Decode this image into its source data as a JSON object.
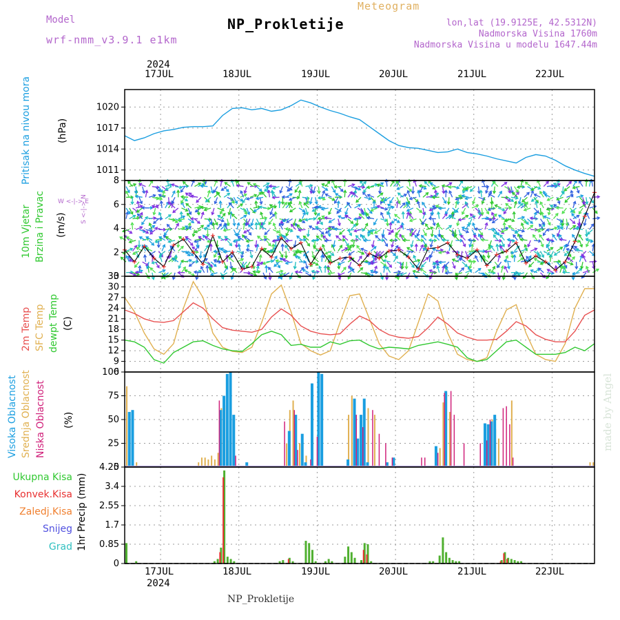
{
  "header": {
    "model_label": "Model",
    "model_name": "wrf-nmm_v3.9.1 e1km",
    "title": "NP_Prokletije",
    "meteogram": "Meteogram",
    "coords": "lon,lat (19.9125E, 42.5312N)",
    "altitude": "Nadmorska Visina 1760m",
    "model_altitude": "Nadmorska Visina u modelu 1647.44m",
    "footer": "NP_Prokletije",
    "watermark": "made by Angel"
  },
  "dates": {
    "year": "2024",
    "days": [
      "17JUL",
      "18JUL",
      "19JUL",
      "20JUL",
      "21JUL",
      "22JUL"
    ]
  },
  "panel_labels": {
    "pressure": [
      "Pritisak na nivou mora",
      "(hPa)"
    ],
    "wind": [
      "10m Vjetar",
      "Brzina i Pravac",
      "(m/s)"
    ],
    "wind_rose": "W <-|-> E",
    "wind_rose_v": "S <-|-> N",
    "temp": [
      "2m Temp",
      "SFC Temp",
      "dewpt Temp",
      "(C)"
    ],
    "cloud": [
      "Visoka Oblacnost",
      "Srednja Oblacnost",
      "Niska Oblacnost",
      "(%)"
    ],
    "precip_axis": "1hr Precip (mm)",
    "precip_legend": [
      "Ukupna Kisa",
      "Konvek.Kisa",
      "Zaledj.Kisa",
      "Snijeg",
      "Grad"
    ]
  },
  "colors": {
    "pressure": "#1a9ee0",
    "t2m": "#e85050",
    "tsfc": "#e0b050",
    "dewpt": "#30c830",
    "high_cloud": "#1a9ee0",
    "mid_cloud": "#e0b050",
    "low_cloud": "#d0207a",
    "total_rain": "#50b030",
    "conv_rain": "#e83030",
    "frz_rain": "#f08030",
    "snow": "#5050e0",
    "hail": "#30c0c0",
    "purple_text": "#b366cc"
  },
  "chart_data": [
    {
      "type": "line",
      "title": "",
      "ylabel": "Pritisak na nivou mora (hPa)",
      "x_unit": "hours from 2024-07-16 13:00",
      "ylim": [
        1009.5,
        1022.5
      ],
      "yticks": [
        1011,
        1014,
        1017,
        1020
      ],
      "series": [
        {
          "name": "Pritisak na nivou mora",
          "x": [
            0,
            3,
            6,
            9,
            12,
            15,
            18,
            21,
            24,
            27,
            30,
            33,
            36,
            39,
            42,
            45,
            48,
            51,
            54,
            57,
            60,
            63,
            66,
            69,
            72,
            75,
            78,
            81,
            84,
            87,
            90,
            93,
            96,
            99,
            102,
            105,
            108,
            111,
            114,
            117,
            120,
            123,
            126,
            129,
            132,
            135,
            138,
            141,
            144
          ],
          "y": [
            1015.9,
            1015.2,
            1015.6,
            1016.2,
            1016.6,
            1016.8,
            1017.1,
            1017.2,
            1017.2,
            1017.3,
            1018.8,
            1019.8,
            1019.9,
            1019.6,
            1019.8,
            1019.4,
            1019.6,
            1020.2,
            1021.0,
            1020.6,
            1020.0,
            1019.5,
            1019.1,
            1018.6,
            1018.2,
            1017.2,
            1016.2,
            1015.2,
            1014.5,
            1014.2,
            1014.1,
            1013.8,
            1013.5,
            1013.6,
            1014.0,
            1013.5,
            1013.3,
            1013.0,
            1012.6,
            1012.3,
            1012.0,
            1012.8,
            1013.2,
            1013.0,
            1012.4,
            1011.6,
            1011.0,
            1010.5,
            1010.1
          ]
        }
      ]
    },
    {
      "type": "line",
      "title": "",
      "ylabel": "10m Vjetar Brzina i Pravac (m/s)",
      "x_unit": "hours from 2024-07-16 13:00",
      "ylim": [
        0,
        8
      ],
      "yticks": [
        0,
        2,
        4,
        6,
        8
      ],
      "series": [
        {
          "name": "10m Vjetar",
          "x": [
            0,
            3,
            6,
            9,
            12,
            15,
            18,
            21,
            24,
            27,
            30,
            33,
            36,
            39,
            42,
            45,
            48,
            51,
            54,
            57,
            60,
            63,
            66,
            69,
            72,
            75,
            78,
            81,
            84,
            87,
            90,
            93,
            96,
            99,
            102,
            105,
            108,
            111,
            114,
            117,
            120,
            123,
            126,
            129,
            132,
            135,
            138,
            141,
            144
          ],
          "y": [
            2.2,
            1.2,
            2.5,
            1.5,
            0.8,
            2.6,
            3.1,
            2.0,
            1.0,
            3.4,
            1.2,
            2.0,
            0.6,
            0.8,
            2.3,
            1.6,
            3.2,
            2.3,
            2.8,
            1.0,
            2.3,
            1.1,
            1.5,
            1.6,
            0.9,
            1.9,
            1.5,
            2.1,
            2.2,
            1.6,
            0.6,
            2.3,
            2.4,
            2.8,
            1.8,
            1.5,
            2.2,
            0.9,
            1.8,
            2.1,
            2.8,
            1.1,
            1.7,
            1.2,
            0.5,
            1.2,
            2.9,
            5.0,
            7.0
          ]
        }
      ]
    },
    {
      "type": "line",
      "title": "",
      "ylabel": "(C)",
      "x_unit": "hours from 2024-07-16 13:00",
      "ylim": [
        6,
        33
      ],
      "yticks": [
        6,
        9,
        12,
        15,
        18,
        21,
        24,
        27,
        30,
        33
      ],
      "series": [
        {
          "name": "2m Temp",
          "x": [
            0,
            3,
            6,
            9,
            12,
            15,
            18,
            21,
            24,
            27,
            30,
            33,
            36,
            39,
            42,
            45,
            48,
            51,
            54,
            57,
            60,
            63,
            66,
            69,
            72,
            75,
            78,
            81,
            84,
            87,
            90,
            93,
            96,
            99,
            102,
            105,
            108,
            111,
            114,
            117,
            120,
            123,
            126,
            129,
            132,
            135,
            138,
            141,
            144
          ],
          "y": [
            23.5,
            22.5,
            21.0,
            20.2,
            20.0,
            20.5,
            23.0,
            25.5,
            24.0,
            21.0,
            18.5,
            17.8,
            17.5,
            17.2,
            18.0,
            21.5,
            23.8,
            22.0,
            19.0,
            17.5,
            16.8,
            16.5,
            16.8,
            19.5,
            21.8,
            20.5,
            18.0,
            16.5,
            15.8,
            15.5,
            16.0,
            18.5,
            21.5,
            19.5,
            17.0,
            15.8,
            15.0,
            15.0,
            15.2,
            17.5,
            20.2,
            19.0,
            16.5,
            15.2,
            14.5,
            14.5,
            17.5,
            22.0,
            23.5
          ]
        },
        {
          "name": "SFC Temp",
          "x": [
            0,
            3,
            6,
            9,
            12,
            15,
            18,
            21,
            24,
            27,
            30,
            33,
            36,
            39,
            42,
            45,
            48,
            51,
            54,
            57,
            60,
            63,
            66,
            69,
            72,
            75,
            78,
            81,
            84,
            87,
            90,
            93,
            96,
            99,
            102,
            105,
            108,
            111,
            114,
            117,
            120,
            123,
            126,
            129,
            132,
            135,
            138,
            141,
            144
          ],
          "y": [
            27.0,
            23.0,
            17.0,
            12.5,
            11.0,
            14.0,
            24.0,
            31.5,
            27.0,
            17.0,
            13.0,
            11.8,
            11.5,
            13.0,
            20.0,
            28.0,
            30.5,
            23.0,
            14.0,
            12.0,
            10.8,
            12.0,
            20.0,
            27.5,
            28.0,
            21.0,
            14.0,
            10.5,
            9.5,
            12.0,
            20.0,
            28.0,
            26.0,
            17.0,
            11.0,
            9.5,
            9.0,
            10.0,
            17.5,
            23.5,
            25.0,
            17.0,
            11.0,
            9.5,
            9.0,
            14.0,
            24.0,
            29.5,
            29.5
          ]
        },
        {
          "name": "dewpt Temp",
          "x": [
            0,
            3,
            6,
            9,
            12,
            15,
            18,
            21,
            24,
            27,
            30,
            33,
            36,
            39,
            42,
            45,
            48,
            51,
            54,
            57,
            60,
            63,
            66,
            69,
            72,
            75,
            78,
            81,
            84,
            87,
            90,
            93,
            96,
            99,
            102,
            105,
            108,
            111,
            114,
            117,
            120,
            123,
            126,
            129,
            132,
            135,
            138,
            141,
            144
          ],
          "y": [
            15.0,
            14.5,
            13.0,
            9.5,
            8.5,
            11.5,
            13.0,
            14.5,
            14.8,
            13.5,
            12.5,
            12.0,
            11.8,
            14.0,
            16.5,
            17.5,
            16.5,
            13.5,
            13.8,
            13.0,
            13.0,
            14.5,
            13.8,
            14.8,
            15.0,
            13.5,
            12.5,
            13.0,
            12.8,
            12.5,
            13.5,
            14.0,
            14.5,
            13.8,
            13.0,
            10.0,
            9.0,
            9.5,
            12.0,
            14.5,
            15.0,
            13.0,
            11.0,
            11.0,
            11.0,
            11.5,
            13.0,
            12.0,
            14.0
          ]
        }
      ]
    },
    {
      "type": "bar",
      "title": "",
      "ylabel": "(%)",
      "x_unit": "hours from 2024-07-16 13:00",
      "ylim": [
        0,
        100
      ],
      "yticks": [
        0,
        25,
        50,
        75,
        100
      ],
      "series": [
        {
          "name": "Visoka Oblacnost",
          "x": [
            1,
            2,
            29,
            30,
            31,
            32,
            33,
            37,
            50,
            52,
            54,
            55,
            57,
            59,
            60,
            68,
            70,
            71,
            72,
            73,
            74,
            80,
            82,
            95,
            98,
            110,
            111,
            112,
            113
          ],
          "y": [
            58,
            60,
            60,
            75,
            98,
            100,
            55,
            5,
            38,
            55,
            35,
            5,
            88,
            100,
            98,
            8,
            72,
            30,
            55,
            72,
            5,
            5,
            10,
            22,
            80,
            46,
            45,
            48,
            55
          ]
        },
        {
          "name": "Srednja Oblacnost",
          "x": [
            0,
            3,
            22,
            23,
            24,
            25,
            26,
            27,
            28,
            29,
            30,
            31,
            49,
            50,
            51,
            52,
            53,
            55,
            57,
            68,
            69,
            70,
            74,
            76,
            80,
            96,
            97,
            98,
            99,
            110,
            112,
            113,
            114,
            118,
            142,
            143
          ],
          "y": [
            85,
            5,
            5,
            10,
            10,
            8,
            12,
            8,
            15,
            62,
            65,
            28,
            25,
            60,
            70,
            10,
            25,
            12,
            30,
            55,
            75,
            15,
            62,
            55,
            5,
            20,
            68,
            78,
            58,
            45,
            50,
            40,
            30,
            70,
            5,
            5
          ]
        },
        {
          "name": "Niska Oblacnost",
          "x": [
            28,
            33,
            48,
            51,
            52,
            56,
            58,
            70,
            72,
            75,
            77,
            79,
            81,
            90,
            91,
            95,
            97,
            99,
            100,
            103,
            108,
            110,
            111,
            115,
            116,
            117,
            118
          ],
          "y": [
            70,
            12,
            48,
            60,
            18,
            8,
            32,
            55,
            42,
            60,
            35,
            25,
            10,
            10,
            10,
            15,
            78,
            80,
            55,
            25,
            25,
            28,
            50,
            62,
            64,
            45,
            10
          ]
        }
      ]
    },
    {
      "type": "bar",
      "title": "",
      "ylabel": "1hr Precip (mm)",
      "x_unit": "hours from 2024-07-16 13:00",
      "ylim": [
        0,
        4.25
      ],
      "yticks": [
        0,
        0.85,
        1.7,
        2.55,
        3.4,
        4.25
      ],
      "series": [
        {
          "name": "Ukupna Kisa",
          "x": [
            0,
            3,
            27,
            28,
            29,
            30,
            31,
            32,
            33,
            47,
            48,
            50,
            51,
            55,
            56,
            57,
            58,
            61,
            62,
            63,
            67,
            68,
            69,
            70,
            72,
            73,
            74,
            75,
            93,
            94,
            96,
            97,
            98,
            99,
            100,
            101,
            102,
            115,
            116,
            117,
            118,
            119,
            120,
            121
          ],
          "y": [
            0.9,
            0.1,
            0.1,
            0.2,
            0.7,
            4.1,
            0.3,
            0.2,
            0.1,
            0.1,
            0.15,
            0.25,
            0.1,
            1.0,
            0.9,
            0.6,
            0.1,
            0.1,
            0.2,
            0.1,
            0.3,
            0.75,
            0.5,
            0.25,
            0.15,
            0.9,
            0.85,
            0.1,
            0.1,
            0.1,
            0.35,
            1.15,
            0.5,
            0.25,
            0.15,
            0.1,
            0.1,
            0.15,
            0.5,
            0.25,
            0.2,
            0.15,
            0.1,
            0.1
          ]
        },
        {
          "name": "Konvek.Kisa",
          "x": [
            29,
            30,
            50,
            73,
            74,
            115,
            116,
            117
          ],
          "y": [
            0.5,
            3.8,
            0.2,
            0.6,
            0.4,
            0.1,
            0.45,
            0.2
          ]
        }
      ]
    }
  ]
}
